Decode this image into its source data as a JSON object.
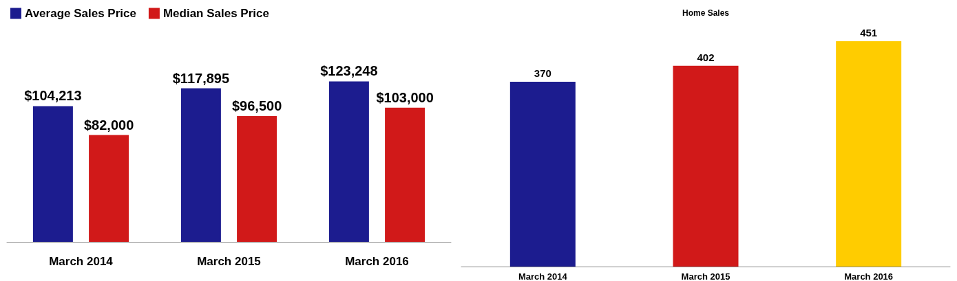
{
  "chart_data": [
    {
      "type": "bar",
      "categories": [
        "March 2014",
        "March 2015",
        "March 2016"
      ],
      "series": [
        {
          "name": "Average Sales Price",
          "color": "#1c1c8f",
          "values": [
            104213,
            117895,
            123248
          ],
          "value_labels": [
            "$104,213",
            "$117,895",
            "$123,248"
          ]
        },
        {
          "name": "Median Sales Price",
          "color": "#d11919",
          "values": [
            82000,
            96500,
            103000
          ],
          "value_labels": [
            "$82,000",
            "$96,500",
            "$103,000"
          ]
        }
      ],
      "legend": "top left",
      "grid": false
    },
    {
      "type": "bar",
      "title": "Home Sales",
      "categories": [
        "March 2014",
        "March 2015",
        "March 2016"
      ],
      "values": [
        370,
        402,
        451
      ],
      "colors": [
        "#1c1c8f",
        "#d11919",
        "#ffcc00"
      ],
      "data_labels": true,
      "grid": false
    }
  ]
}
